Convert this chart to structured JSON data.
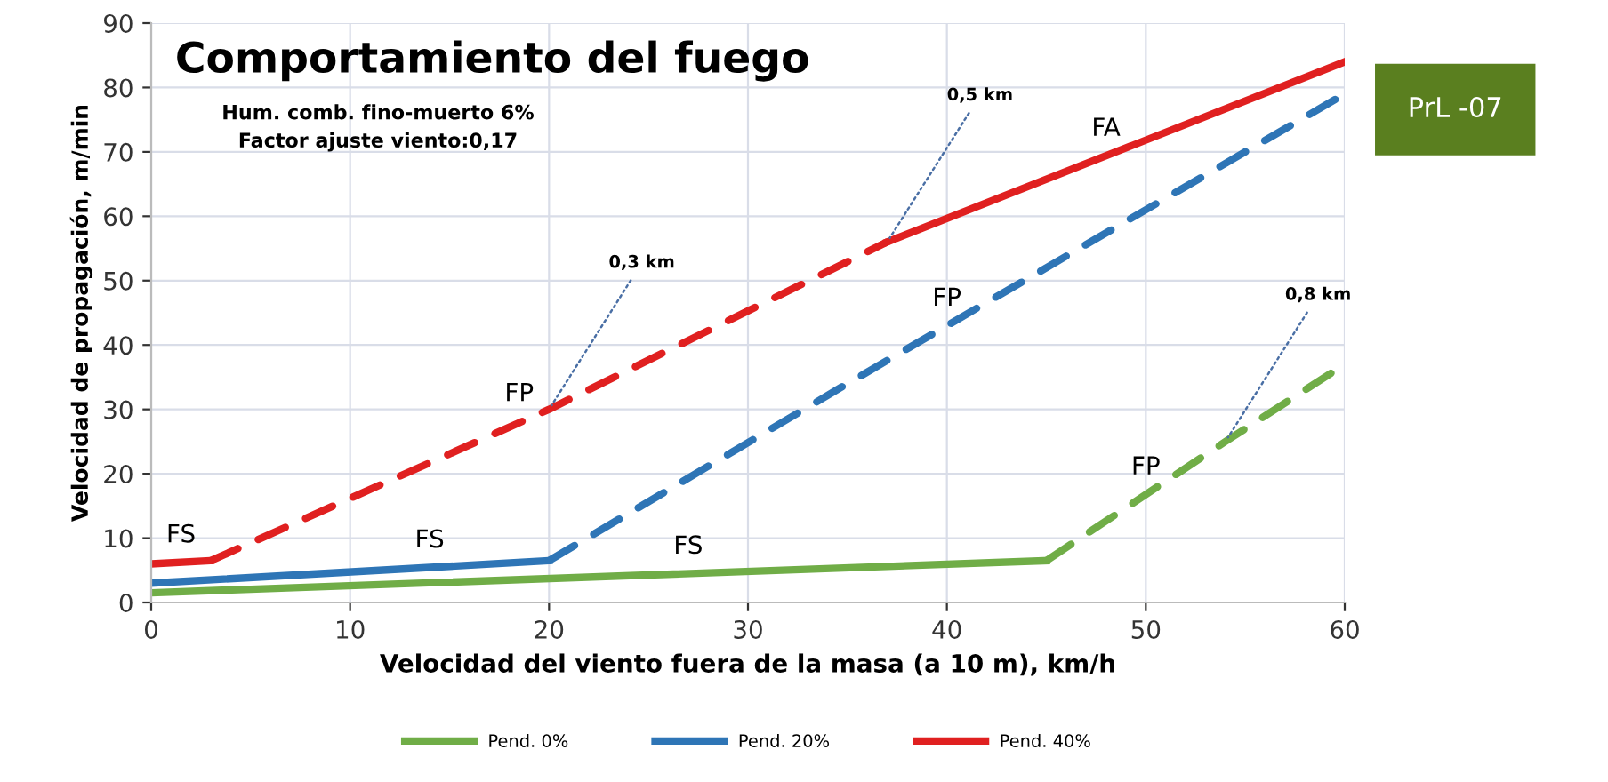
{
  "chart_data": {
    "type": "line",
    "title": "Comportamiento del fuego",
    "subtitle": "Hum. comb. fino-muerto 6%\nFactor ajuste viento:0,17",
    "xlabel": "Velocidad del viento fuera de la masa (a 10 m), km/h",
    "ylabel": "Velocidad de propagación, m/min",
    "xlim": [
      0,
      60
    ],
    "ylim": [
      0,
      90
    ],
    "xticks": [
      0,
      10,
      20,
      30,
      40,
      50,
      60
    ],
    "yticks": [
      0,
      10,
      20,
      30,
      40,
      50,
      60,
      70,
      80,
      90
    ],
    "grid": true,
    "legend": "bottom",
    "marker": "none",
    "series": [
      {
        "name": "Pend. 0%",
        "color": "#70ad47",
        "line_style": "solid",
        "x": [
          0,
          45
        ],
        "values": [
          1.5,
          6.5
        ]
      },
      {
        "color": "#70ad47",
        "line_style": "dashed",
        "x": [
          45,
          54,
          60
        ],
        "values": [
          6.5,
          25,
          37
        ]
      },
      {
        "name": "Pend. 20%",
        "color": "#2e75b6",
        "line_style": "solid",
        "x": [
          0,
          20
        ],
        "values": [
          3,
          6.5
        ]
      },
      {
        "color": "#2e75b6",
        "line_style": "dashed",
        "x": [
          20,
          35,
          60
        ],
        "values": [
          6.5,
          34,
          79
        ]
      },
      {
        "name": "Pend. 40%",
        "color": "#e02020",
        "line_style": "solid",
        "x": [
          0,
          3
        ],
        "values": [
          6,
          6.5
        ]
      },
      {
        "color": "#e02020",
        "line_style": "dashed",
        "x": [
          3,
          20,
          37
        ],
        "values": [
          6.5,
          30,
          56
        ]
      },
      {
        "color": "#e02020",
        "line_style": "solid",
        "x": [
          37,
          60
        ],
        "values": [
          56,
          84
        ]
      }
    ],
    "annotations": [
      {
        "text": "0,3 km",
        "x": 20,
        "y": 30
      },
      {
        "text": "0,5 km",
        "x": 37,
        "y": 56
      },
      {
        "text": "0,8 km",
        "x": 54,
        "y": 25
      },
      {
        "text": "FS",
        "x": 1.5,
        "y": 6.25
      },
      {
        "text": "FS",
        "x": 14,
        "y": 5.45
      },
      {
        "text": "FS",
        "x": 27,
        "y": 4.5
      },
      {
        "text": "FP",
        "x": 18.5,
        "y": 28.2
      },
      {
        "text": "FP",
        "x": 40,
        "y": 43
      },
      {
        "text": "FP",
        "x": 50,
        "y": 16.8
      },
      {
        "text": "FA",
        "x": 48,
        "y": 69.4
      },
      "PrL -07"
    ]
  }
}
